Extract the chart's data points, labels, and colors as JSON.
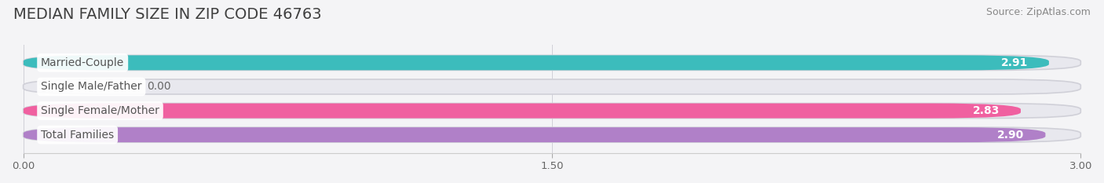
{
  "title": "MEDIAN FAMILY SIZE IN ZIP CODE 46763",
  "source": "Source: ZipAtlas.com",
  "categories": [
    "Married-Couple",
    "Single Male/Father",
    "Single Female/Mother",
    "Total Families"
  ],
  "values": [
    2.91,
    0.0,
    2.83,
    2.9
  ],
  "bar_colors": [
    "#3cbcbc",
    "#a8b8e8",
    "#f060a0",
    "#b080c8"
  ],
  "bar_bg_color": "#e8e8ee",
  "xlim": [
    0,
    3.0
  ],
  "xticks": [
    0.0,
    1.5,
    3.0
  ],
  "xtick_labels": [
    "0.00",
    "1.50",
    "3.00"
  ],
  "title_fontsize": 14,
  "source_fontsize": 9,
  "label_fontsize": 10,
  "value_fontsize": 10,
  "background_color": "#f4f4f6",
  "bar_height": 0.62,
  "label_bg_color": "white",
  "label_text_color": "#555555",
  "grid_color": "#d0d0d8"
}
